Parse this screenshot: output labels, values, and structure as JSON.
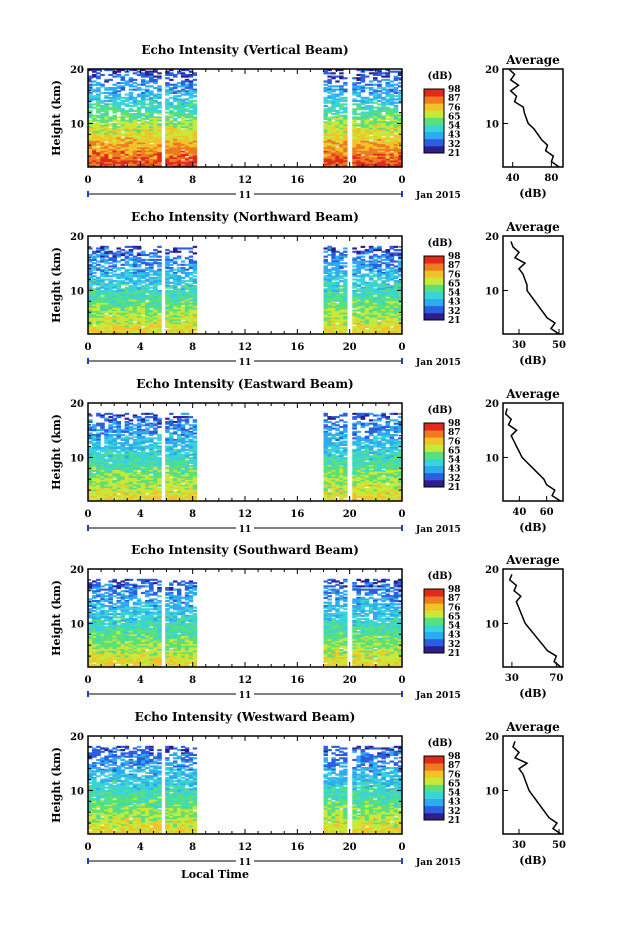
{
  "chart_data": {
    "type": "heatmap",
    "day_label": "11",
    "month_label": "Jan 2015",
    "xlabel": "Local Time",
    "ylabel": "Height (km)",
    "xlim": [
      0,
      24
    ],
    "xticks": [
      "0",
      "4",
      "8",
      "12",
      "16",
      "20",
      "0"
    ],
    "ylim": [
      2,
      20
    ],
    "yticks": [
      "10",
      "20"
    ],
    "colorbar_title": "(dB)",
    "colorbar_ticks": [
      "21",
      "32",
      "43",
      "54",
      "65",
      "76",
      "87",
      "98"
    ],
    "data_blocks_hours": [
      [
        0,
        5.6
      ],
      [
        5.9,
        8.3
      ],
      [
        18.0,
        19.8
      ],
      [
        20.2,
        24
      ]
    ],
    "panels": [
      {
        "title": "Echo Intensity (Vertical Beam)",
        "top_km": 20,
        "avg_title": "Average",
        "avg_xlabel": "(dB)",
        "avg_xticks": [
          "40",
          "80"
        ],
        "avg_xlim": [
          30,
          92
        ],
        "avg_profile": {
          "height_km": [
            2,
            3,
            4,
            5,
            6,
            7,
            8,
            9,
            10,
            11,
            12,
            13,
            14,
            15,
            16,
            17,
            18,
            19,
            20
          ],
          "db": [
            88,
            80,
            82,
            74,
            76,
            70,
            66,
            62,
            56,
            54,
            52,
            51,
            42,
            44,
            38,
            46,
            38,
            42,
            36
          ]
        }
      },
      {
        "title": "Echo Intensity (Northward Beam)",
        "top_km": 18,
        "avg_title": "Average",
        "avg_xlabel": "(dB)",
        "avg_xticks": [
          "30",
          "50"
        ],
        "avg_xlim": [
          22,
          52
        ],
        "avg_profile": {
          "height_km": [
            2,
            3,
            4,
            5,
            6,
            7,
            8,
            9,
            10,
            11,
            12,
            13,
            14,
            15,
            16,
            17,
            18,
            19
          ],
          "db": [
            50,
            46,
            48,
            44,
            42,
            40,
            38,
            36,
            34,
            34,
            33,
            32,
            30,
            33,
            28,
            30,
            27,
            26
          ]
        }
      },
      {
        "title": "Echo Intensity (Eastward Beam)",
        "top_km": 18,
        "avg_title": "Average",
        "avg_xlabel": "(dB)",
        "avg_xticks": [
          "40",
          "60"
        ],
        "avg_xlim": [
          28,
          72
        ],
        "avg_profile": {
          "height_km": [
            2,
            3,
            4,
            5,
            6,
            7,
            8,
            9,
            10,
            11,
            12,
            13,
            14,
            15,
            16,
            17,
            18,
            19
          ],
          "db": [
            70,
            64,
            66,
            60,
            58,
            54,
            50,
            46,
            42,
            40,
            38,
            36,
            34,
            38,
            32,
            34,
            30,
            31
          ]
        }
      },
      {
        "title": "Echo Intensity (Southward Beam)",
        "top_km": 18,
        "avg_title": "Average",
        "avg_xlabel": "(dB)",
        "avg_xticks": [
          "30",
          "70"
        ],
        "avg_xlim": [
          22,
          76
        ],
        "avg_profile": {
          "height_km": [
            2,
            3,
            4,
            5,
            6,
            7,
            8,
            9,
            10,
            11,
            12,
            13,
            14,
            15,
            16,
            17,
            18,
            19
          ],
          "db": [
            74,
            68,
            70,
            62,
            58,
            54,
            50,
            46,
            42,
            40,
            38,
            36,
            34,
            38,
            32,
            34,
            28,
            30
          ]
        }
      },
      {
        "title": "Echo Intensity (Westward Beam)",
        "top_km": 18,
        "avg_title": "Average",
        "avg_xlabel": "(dB)",
        "avg_xticks": [
          "30",
          "50"
        ],
        "avg_xlim": [
          22,
          52
        ],
        "avg_profile": {
          "height_km": [
            2,
            3,
            4,
            5,
            6,
            7,
            8,
            9,
            10,
            11,
            12,
            13,
            14,
            15,
            16,
            17,
            18,
            19
          ],
          "db": [
            51,
            47,
            49,
            45,
            43,
            41,
            39,
            37,
            35,
            34,
            33,
            32,
            30,
            34,
            28,
            30,
            27,
            28
          ]
        }
      }
    ]
  },
  "colors": {
    "colorbar": [
      "#2e1e8c",
      "#2b5fe0",
      "#2eaaf0",
      "#39d3d8",
      "#5ae07a",
      "#c8e83a",
      "#f2c22a",
      "#f07a22",
      "#e02a1c"
    ],
    "axis": "#000000",
    "tick_accent": "#1f3fbf"
  }
}
